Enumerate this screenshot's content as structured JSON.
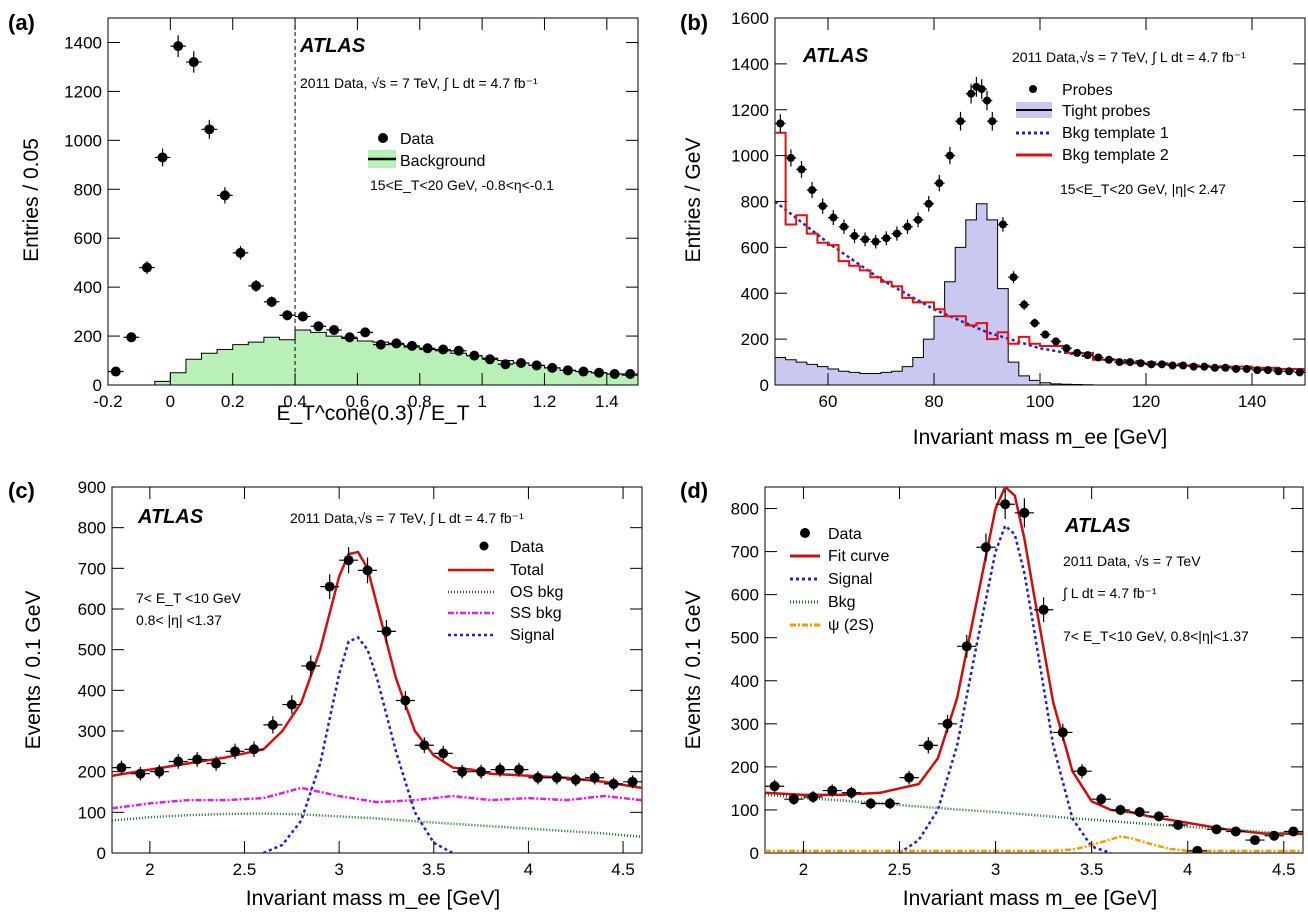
{
  "panels": {
    "a": {
      "label": "(a)",
      "atlas": "ATLAS",
      "lumi": "2011 Data,   √s = 7 TeV,   ∫ L dt = 4.7 fb⁻¹",
      "cut": "15<E_T<20 GeV, -0.8<η<-0.1",
      "xlabel": "E_T^cone(0.3) / E_T",
      "ylabel": "Entries / 0.05"
    },
    "b": {
      "label": "(b)",
      "atlas": "ATLAS",
      "lumi": "2011 Data,√s = 7 TeV,  ∫ L dt = 4.7 fb⁻¹",
      "cut": "15<E_T<20 GeV,  |η|< 2.47",
      "xlabel": "Invariant mass m_ee [GeV]",
      "ylabel": "Entries / GeV"
    },
    "c": {
      "label": "(c)",
      "atlas": "ATLAS",
      "lumi": "2011 Data,√s = 7 TeV, ∫ L dt = 4.7 fb⁻¹",
      "cut1": "7< E_T <10 GeV",
      "cut2": "0.8< |η| <1.37",
      "xlabel": "Invariant mass m_ee [GeV]",
      "ylabel": "Events / 0.1 GeV"
    },
    "d": {
      "label": "(d)",
      "atlas": "ATLAS",
      "lumi1": "2011 Data, √s = 7 TeV",
      "lumi2": "∫ L dt = 4.7 fb⁻¹",
      "cut": "7< E_T<10 GeV, 0.8<|η|<1.37",
      "xlabel": "Invariant mass m_ee [GeV]",
      "ylabel": "Events / 0.1 GeV"
    }
  },
  "chart_data": [
    {
      "panel": "a",
      "type": "scatter",
      "xlim": [
        -0.2,
        1.5
      ],
      "ylim": [
        0,
        1500
      ],
      "xticks": [
        -0.2,
        0,
        0.2,
        0.4,
        0.6,
        0.8,
        1,
        1.2,
        1.4
      ],
      "yticks": [
        0,
        200,
        400,
        600,
        800,
        1000,
        1200,
        1400
      ],
      "vline": 0.4,
      "legend": [
        "Data",
        "Background"
      ],
      "series": [
        {
          "name": "Data",
          "kind": "points",
          "x": [
            -0.175,
            -0.125,
            -0.075,
            -0.025,
            0.025,
            0.075,
            0.125,
            0.175,
            0.225,
            0.275,
            0.325,
            0.375,
            0.425,
            0.475,
            0.525,
            0.575,
            0.625,
            0.675,
            0.725,
            0.775,
            0.825,
            0.875,
            0.925,
            0.975,
            1.025,
            1.075,
            1.125,
            1.175,
            1.225,
            1.275,
            1.325,
            1.375,
            1.425,
            1.475
          ],
          "y": [
            55,
            195,
            480,
            930,
            1385,
            1320,
            1045,
            775,
            540,
            405,
            340,
            285,
            280,
            240,
            225,
            195,
            215,
            165,
            170,
            160,
            150,
            145,
            140,
            120,
            105,
            85,
            90,
            80,
            70,
            60,
            55,
            50,
            45,
            45
          ]
        },
        {
          "name": "Background",
          "kind": "hist",
          "color": "#b8f0b8",
          "edges": [
            -0.2,
            -0.15,
            -0.1,
            -0.05,
            0,
            0.05,
            0.1,
            0.15,
            0.2,
            0.25,
            0.3,
            0.35,
            0.4,
            0.45,
            0.5,
            0.55,
            0.6,
            0.65,
            0.7,
            0.75,
            0.8,
            0.85,
            0.9,
            0.95,
            1,
            1.05,
            1.1,
            1.15,
            1.2,
            1.25,
            1.3,
            1.35,
            1.4,
            1.45,
            1.5
          ],
          "y": [
            0,
            0,
            0,
            15,
            50,
            105,
            130,
            145,
            165,
            175,
            195,
            185,
            225,
            215,
            200,
            190,
            180,
            175,
            165,
            155,
            145,
            140,
            130,
            120,
            110,
            100,
            90,
            80,
            70,
            60,
            55,
            50,
            45,
            40
          ]
        }
      ]
    },
    {
      "panel": "b",
      "type": "line",
      "xlim": [
        50,
        150
      ],
      "ylim": [
        0,
        1600
      ],
      "xticks": [
        60,
        80,
        100,
        120,
        140
      ],
      "yticks": [
        0,
        200,
        400,
        600,
        800,
        1000,
        1200,
        1400,
        1600
      ],
      "legend": [
        "Probes",
        "Tight probes",
        "Bkg template 1",
        "Bkg template 2"
      ],
      "series": [
        {
          "name": "Probes",
          "kind": "points",
          "x": [
            51,
            53,
            55,
            57,
            59,
            61,
            63,
            65,
            67,
            69,
            71,
            73,
            75,
            77,
            79,
            81,
            83,
            85,
            87,
            88,
            89,
            90,
            91,
            93,
            95,
            97,
            99,
            101,
            103,
            105,
            107,
            109,
            111,
            113,
            115,
            117,
            119,
            121,
            123,
            125,
            127,
            129,
            131,
            133,
            135,
            137,
            139,
            141,
            143,
            145,
            147,
            149
          ],
          "y": [
            1140,
            990,
            940,
            850,
            780,
            730,
            690,
            650,
            635,
            625,
            640,
            660,
            690,
            720,
            790,
            880,
            1000,
            1150,
            1270,
            1300,
            1290,
            1240,
            1150,
            700,
            470,
            350,
            270,
            220,
            190,
            160,
            140,
            130,
            120,
            110,
            100,
            100,
            95,
            90,
            90,
            85,
            85,
            80,
            80,
            75,
            75,
            70,
            70,
            65,
            65,
            60,
            60,
            55
          ]
        },
        {
          "name": "Tight probes",
          "kind": "hist",
          "color": "#c8c8f0",
          "edges": [
            50,
            52,
            54,
            56,
            58,
            60,
            62,
            64,
            66,
            68,
            70,
            72,
            74,
            76,
            78,
            80,
            82,
            84,
            86,
            88,
            90,
            92,
            94,
            96,
            98,
            100,
            102,
            104,
            106,
            108,
            110
          ],
          "y": [
            120,
            110,
            100,
            90,
            80,
            70,
            60,
            55,
            50,
            50,
            55,
            60,
            80,
            120,
            200,
            300,
            450,
            600,
            720,
            790,
            720,
            420,
            100,
            40,
            20,
            10,
            5,
            3,
            2,
            1
          ]
        },
        {
          "name": "Bkg template 1",
          "kind": "line",
          "color": "#1f1fd0",
          "x": [
            50,
            60,
            70,
            80,
            90,
            100,
            110,
            120,
            130,
            140,
            150
          ],
          "y": [
            800,
            620,
            460,
            330,
            230,
            160,
            120,
            100,
            85,
            75,
            65
          ]
        },
        {
          "name": "Bkg template 2",
          "kind": "line",
          "color": "#e01010",
          "x": [
            50,
            52,
            54,
            56,
            58,
            60,
            62,
            64,
            66,
            68,
            70,
            72,
            74,
            76,
            78,
            80,
            82,
            84,
            86,
            88,
            90,
            92,
            94,
            96,
            98,
            100,
            105,
            110,
            115,
            120,
            125,
            130,
            135,
            140,
            145,
            150
          ],
          "y": [
            1100,
            700,
            740,
            660,
            620,
            610,
            540,
            520,
            500,
            470,
            450,
            430,
            380,
            360,
            360,
            330,
            300,
            300,
            260,
            270,
            200,
            230,
            180,
            210,
            180,
            170,
            140,
            110,
            95,
            90,
            85,
            80,
            80,
            75,
            70,
            65
          ]
        }
      ]
    },
    {
      "panel": "c",
      "type": "line",
      "xlim": [
        1.8,
        4.6
      ],
      "ylim": [
        0,
        900
      ],
      "xticks": [
        2,
        2.5,
        3,
        3.5,
        4,
        4.5
      ],
      "yticks": [
        0,
        100,
        200,
        300,
        400,
        500,
        600,
        700,
        800,
        900
      ],
      "legend": [
        "Data",
        "Total",
        "OS bkg",
        "SS bkg",
        "Signal"
      ],
      "series": [
        {
          "name": "Data",
          "kind": "points",
          "x": [
            1.85,
            1.95,
            2.05,
            2.15,
            2.25,
            2.35,
            2.45,
            2.55,
            2.65,
            2.75,
            2.85,
            2.95,
            3.05,
            3.15,
            3.25,
            3.35,
            3.45,
            3.55,
            3.65,
            3.75,
            3.85,
            3.95,
            4.05,
            4.15,
            4.25,
            4.35,
            4.45,
            4.55
          ],
          "y": [
            210,
            195,
            200,
            225,
            230,
            220,
            250,
            255,
            315,
            365,
            460,
            655,
            720,
            695,
            545,
            375,
            265,
            245,
            200,
            200,
            205,
            205,
            185,
            185,
            180,
            185,
            170,
            175
          ]
        },
        {
          "name": "Total",
          "kind": "line",
          "color": "#d01010",
          "x": [
            1.8,
            2.0,
            2.2,
            2.4,
            2.6,
            2.7,
            2.8,
            2.9,
            3.0,
            3.05,
            3.1,
            3.15,
            3.2,
            3.3,
            3.4,
            3.5,
            3.6,
            3.7,
            3.8,
            4.0,
            4.2,
            4.4,
            4.6
          ],
          "y": [
            190,
            205,
            220,
            235,
            255,
            300,
            370,
            500,
            680,
            735,
            740,
            700,
            610,
            430,
            300,
            240,
            210,
            205,
            195,
            190,
            185,
            175,
            160
          ]
        },
        {
          "name": "OS bkg",
          "kind": "line",
          "color": "#1a6a1a",
          "x": [
            1.8,
            2.0,
            2.2,
            2.4,
            2.6,
            2.8,
            3.0,
            3.2,
            3.4,
            3.6,
            3.8,
            4.0,
            4.2,
            4.4,
            4.6
          ],
          "y": [
            80,
            88,
            93,
            96,
            97,
            95,
            90,
            85,
            78,
            72,
            66,
            60,
            54,
            48,
            40
          ]
        },
        {
          "name": "SS bkg",
          "kind": "line",
          "color": "#e020e0",
          "x": [
            1.8,
            2.0,
            2.2,
            2.4,
            2.6,
            2.8,
            3.0,
            3.2,
            3.4,
            3.6,
            3.8,
            4.0,
            4.2,
            4.4,
            4.6
          ],
          "y": [
            110,
            122,
            130,
            130,
            135,
            160,
            140,
            125,
            130,
            140,
            130,
            135,
            130,
            140,
            130
          ]
        },
        {
          "name": "Signal",
          "kind": "line",
          "color": "#2020d0",
          "x": [
            2.6,
            2.7,
            2.8,
            2.9,
            3.0,
            3.05,
            3.1,
            3.15,
            3.2,
            3.3,
            3.4,
            3.5,
            3.6
          ],
          "y": [
            0,
            20,
            80,
            220,
            440,
            520,
            530,
            500,
            430,
            250,
            100,
            25,
            0
          ]
        }
      ]
    },
    {
      "panel": "d",
      "type": "line",
      "xlim": [
        1.8,
        4.6
      ],
      "ylim": [
        0,
        850
      ],
      "xticks": [
        2,
        2.5,
        3,
        3.5,
        4,
        4.5
      ],
      "yticks": [
        0,
        100,
        200,
        300,
        400,
        500,
        600,
        700,
        800
      ],
      "legend": [
        "Data",
        "Fit curve",
        "Signal",
        "Bkg",
        "ψ (2S)"
      ],
      "series": [
        {
          "name": "Data",
          "kind": "points",
          "x": [
            1.85,
            1.95,
            2.05,
            2.15,
            2.25,
            2.35,
            2.45,
            2.55,
            2.65,
            2.75,
            2.85,
            2.95,
            3.05,
            3.15,
            3.25,
            3.35,
            3.45,
            3.55,
            3.65,
            3.75,
            3.85,
            3.95,
            4.05,
            4.15,
            4.25,
            4.35,
            4.45,
            4.55
          ],
          "y": [
            155,
            125,
            130,
            145,
            140,
            115,
            115,
            175,
            250,
            300,
            480,
            710,
            810,
            790,
            565,
            280,
            190,
            125,
            100,
            95,
            85,
            65,
            5,
            55,
            50,
            30,
            40,
            50
          ]
        },
        {
          "name": "Fit curve",
          "kind": "line",
          "color": "#c81010",
          "x": [
            1.8,
            2.0,
            2.2,
            2.4,
            2.6,
            2.7,
            2.8,
            2.9,
            3.0,
            3.05,
            3.1,
            3.15,
            3.2,
            3.3,
            3.4,
            3.5,
            3.6,
            3.7,
            3.8,
            4.0,
            4.2,
            4.4,
            4.6
          ],
          "y": [
            140,
            135,
            135,
            140,
            160,
            220,
            360,
            580,
            800,
            850,
            830,
            730,
            600,
            350,
            190,
            120,
            100,
            95,
            85,
            70,
            55,
            45,
            45
          ]
        },
        {
          "name": "Signal",
          "kind": "line",
          "color": "#2020d0",
          "x": [
            2.5,
            2.6,
            2.7,
            2.8,
            2.9,
            3.0,
            3.05,
            3.1,
            3.15,
            3.2,
            3.3,
            3.4,
            3.5,
            3.6
          ],
          "y": [
            0,
            30,
            100,
            250,
            480,
            700,
            760,
            740,
            650,
            520,
            250,
            80,
            15,
            0
          ]
        },
        {
          "name": "Bkg",
          "kind": "line",
          "color": "#1a6a1a",
          "x": [
            1.8,
            2.0,
            2.2,
            2.4,
            2.6,
            2.8,
            3.0,
            3.2,
            3.4,
            3.6,
            3.8,
            4.0,
            4.2,
            4.4,
            4.6
          ],
          "y": [
            135,
            128,
            122,
            115,
            108,
            101,
            95,
            88,
            81,
            74,
            67,
            61,
            55,
            49,
            43
          ]
        },
        {
          "name": "ψ (2S)",
          "kind": "line",
          "color": "#ff9900",
          "x": [
            1.8,
            3.3,
            3.4,
            3.5,
            3.6,
            3.65,
            3.7,
            3.8,
            3.9,
            4.0,
            4.2,
            4.6
          ],
          "y": [
            5,
            5,
            8,
            18,
            32,
            38,
            35,
            22,
            10,
            5,
            5,
            5
          ]
        }
      ]
    }
  ]
}
